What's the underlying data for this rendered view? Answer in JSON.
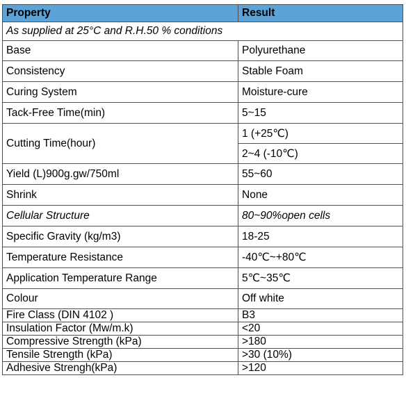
{
  "table": {
    "header": {
      "property": "Property",
      "result": "Result"
    },
    "condition": "As supplied at 25°C and R.H.50 % conditions",
    "rows": [
      {
        "property": "Base",
        "result": "Polyurethane"
      },
      {
        "property": "Consistency",
        "result": "Stable Foam"
      },
      {
        "property": "Curing System",
        "result": "Moisture-cure"
      },
      {
        "property": "Tack-Free Time(min)",
        "result": "5~15"
      },
      {
        "property": "Cutting Time(hour)",
        "result": "1   (+25℃)",
        "result2": "2~4 (-10℃)"
      },
      {
        "property": "Yield (L)900g.gw/750ml",
        "result": "55~60"
      },
      {
        "property": "Shrink",
        "result": "None"
      },
      {
        "property": "Cellular Structure",
        "result": "80~90%open cells"
      },
      {
        "property": "Specific Gravity (kg/m3)",
        "result": "18-25"
      },
      {
        "property": "Temperature Resistance",
        "result": "-40℃~+80℃"
      },
      {
        "property": "Application Temperature Range",
        "result": "5℃~35℃"
      },
      {
        "property": "Colour",
        "result": "Off white"
      },
      {
        "property": "Fire Class (DIN 4102 )",
        "result": "B3"
      },
      {
        "property": "Insulation Factor  (Mw/m.k)",
        "result": "<20"
      },
      {
        "property": "Compressive Strength (kPa)",
        "result": ">180"
      },
      {
        "property": "Tensile Strength (kPa)",
        "result": ">30 (10%)"
      },
      {
        "property": "Adhesive Strengh(kPa)",
        "result": ">120"
      }
    ]
  },
  "colors": {
    "header_bg": "#5ba3d9",
    "border": "#4f4f4f"
  }
}
